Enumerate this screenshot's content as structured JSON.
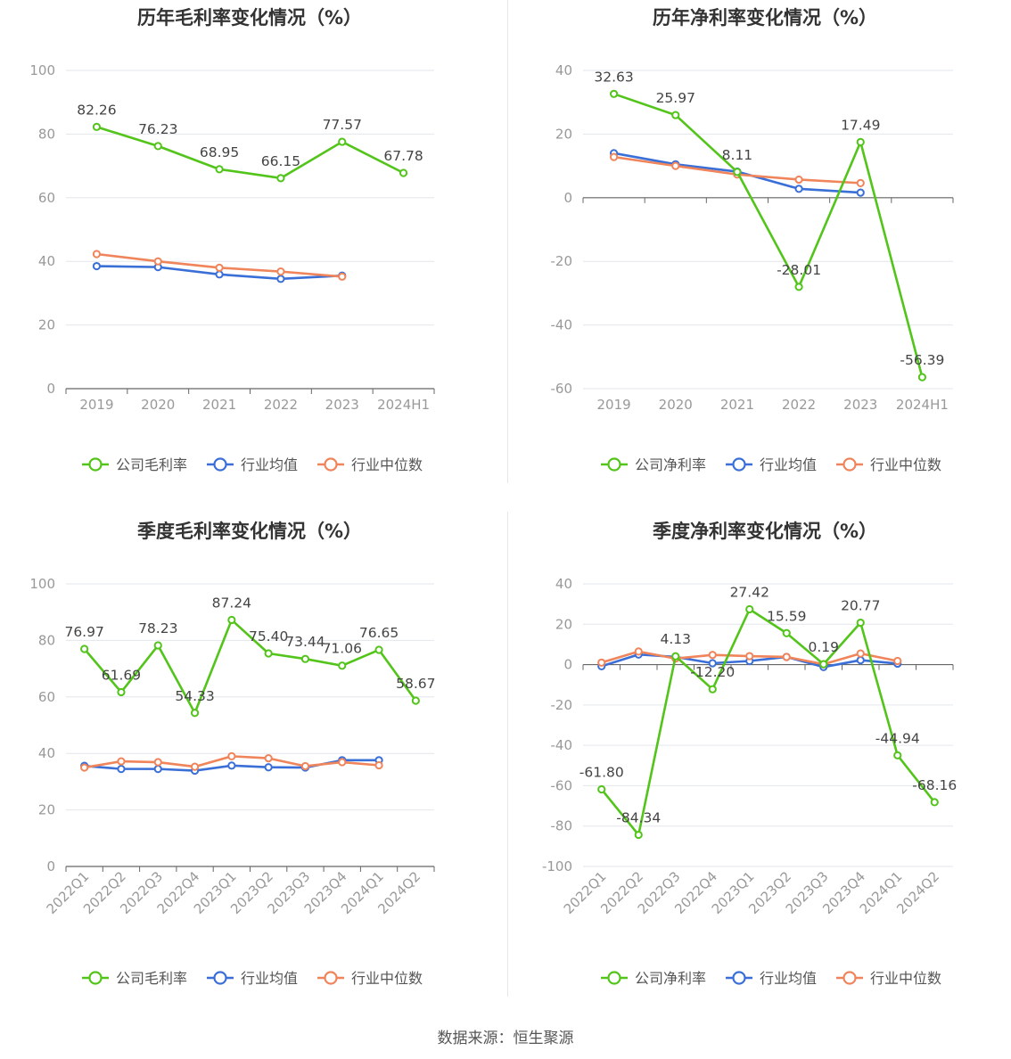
{
  "footer": "数据来源：恒生聚源",
  "colors": {
    "company": "#52c41a",
    "avg": "#3a6fd8",
    "median": "#f0845b",
    "grid": "#e3e6ee",
    "axis": "#666666",
    "tick": "#999999",
    "label": "#444444"
  },
  "chart_data": [
    {
      "type": "line",
      "title": "历年毛利率变化情况（%）",
      "categories": [
        "2019",
        "2020",
        "2021",
        "2022",
        "2023",
        "2024H1"
      ],
      "ylim": [
        0,
        100
      ],
      "yticks": [
        0,
        20,
        40,
        60,
        80,
        100
      ],
      "grid": true,
      "legend": "bottom",
      "series": [
        {
          "name": "公司毛利率",
          "values": [
            82.26,
            76.23,
            68.95,
            66.15,
            77.57,
            67.78
          ],
          "labels": [
            "82.26",
            "76.23",
            "68.95",
            "66.15",
            "77.57",
            "67.78"
          ]
        },
        {
          "name": "行业均值",
          "values": [
            38.5,
            38.2,
            35.9,
            34.5,
            35.5,
            null
          ]
        },
        {
          "name": "行业中位数",
          "values": [
            42.3,
            40.0,
            38.0,
            36.8,
            35.2,
            null
          ]
        }
      ]
    },
    {
      "type": "line",
      "title": "历年净利率变化情况（%）",
      "categories": [
        "2019",
        "2020",
        "2021",
        "2022",
        "2023",
        "2024H1"
      ],
      "ylim": [
        -60,
        40
      ],
      "yticks": [
        -60,
        -40,
        -20,
        0,
        20,
        40
      ],
      "grid": true,
      "legend": "bottom",
      "series": [
        {
          "name": "公司净利率",
          "values": [
            32.63,
            25.97,
            8.11,
            -28.01,
            17.49,
            -56.39
          ],
          "labels": [
            "32.63",
            "25.97",
            "8.11",
            "-28.01",
            "17.49",
            "-56.39"
          ]
        },
        {
          "name": "行业均值",
          "values": [
            14.0,
            10.5,
            8.2,
            2.8,
            1.6,
            null
          ]
        },
        {
          "name": "行业中位数",
          "values": [
            12.8,
            10.0,
            7.3,
            5.7,
            4.6,
            null
          ]
        }
      ]
    },
    {
      "type": "line",
      "title": "季度毛利率变化情况（%）",
      "categories": [
        "2022Q1",
        "2022Q2",
        "2022Q3",
        "2022Q4",
        "2023Q1",
        "2023Q2",
        "2023Q3",
        "2023Q4",
        "2024Q1",
        "2024Q2"
      ],
      "ylim": [
        0,
        100
      ],
      "yticks": [
        0,
        20,
        40,
        60,
        80,
        100
      ],
      "grid": true,
      "legend": "bottom",
      "series": [
        {
          "name": "公司毛利率",
          "values": [
            76.97,
            61.69,
            78.23,
            54.33,
            87.24,
            75.4,
            73.44,
            71.06,
            76.65,
            58.67
          ],
          "labels": [
            "76.97",
            "61.69",
            "78.23",
            "54.33",
            "87.24",
            "75.40",
            "73.44",
            "71.06",
            "76.65",
            "58.67"
          ]
        },
        {
          "name": "行业均值",
          "values": [
            35.6,
            34.5,
            34.5,
            33.9,
            35.7,
            35.1,
            35.0,
            37.6,
            37.6,
            null
          ]
        },
        {
          "name": "行业中位数",
          "values": [
            35.0,
            37.2,
            36.9,
            35.3,
            39.0,
            38.3,
            35.5,
            36.9,
            35.8,
            null
          ]
        }
      ]
    },
    {
      "type": "line",
      "title": "季度净利率变化情况（%）",
      "categories": [
        "2022Q1",
        "2022Q2",
        "2022Q3",
        "2022Q4",
        "2023Q1",
        "2023Q2",
        "2023Q3",
        "2023Q4",
        "2024Q1",
        "2024Q2"
      ],
      "ylim": [
        -100,
        40
      ],
      "yticks": [
        -100,
        -80,
        -60,
        -40,
        -20,
        0,
        20,
        40
      ],
      "grid": true,
      "legend": "bottom",
      "series": [
        {
          "name": "公司净利率",
          "values": [
            -61.8,
            -84.34,
            4.13,
            -12.2,
            27.42,
            15.59,
            0.19,
            20.77,
            -44.94,
            -68.16
          ],
          "labels": [
            "-61.80",
            "-84.34",
            "4.13",
            "-12.20",
            "27.42",
            "15.59",
            "0.19",
            "20.77",
            "-44.94",
            "-68.16"
          ]
        },
        {
          "name": "行业均值",
          "values": [
            -0.8,
            5.0,
            3.8,
            0.7,
            1.8,
            3.8,
            -1.2,
            2.2,
            0.5,
            null
          ]
        },
        {
          "name": "行业中位数",
          "values": [
            1.0,
            6.5,
            3.0,
            4.8,
            4.2,
            3.8,
            0.2,
            5.5,
            1.8,
            null
          ]
        }
      ]
    }
  ]
}
